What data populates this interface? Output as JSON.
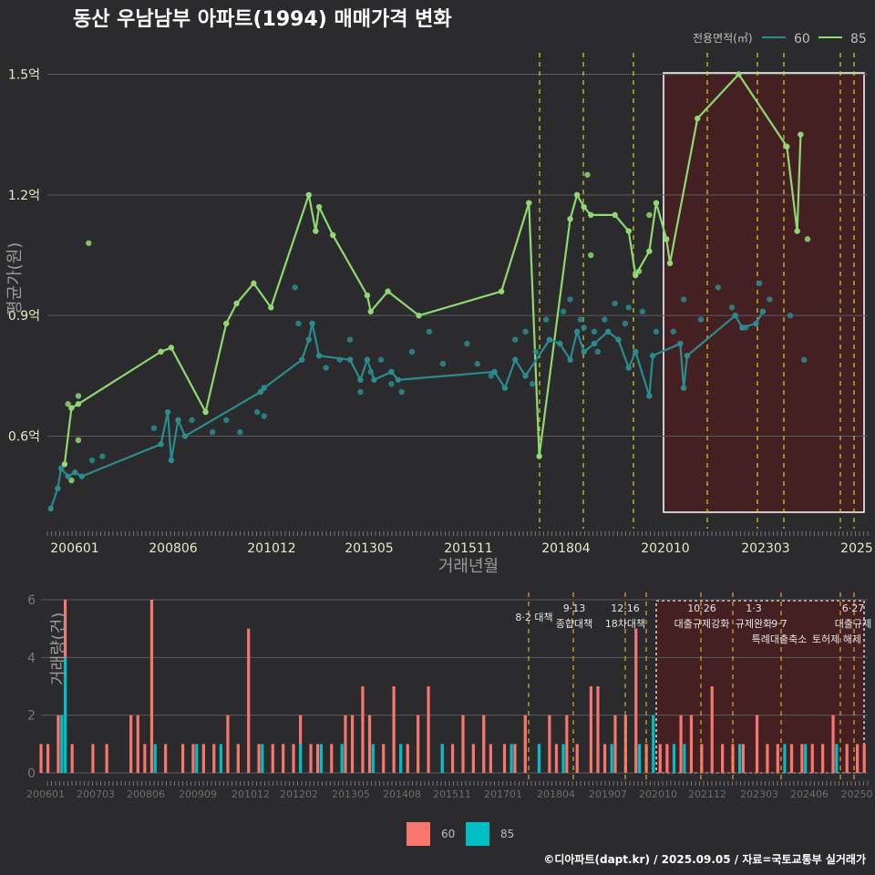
{
  "chart_data": [
    {
      "type": "line",
      "title": "동산 우남남부 아파트(1994) 매매가격 변화",
      "xlabel": "거래년월",
      "ylabel": "평균가(원)",
      "ylim": [
        0.37,
        1.56
      ],
      "yticks": [
        {
          "v": 0.6,
          "label": "0.6억"
        },
        {
          "v": 0.9,
          "label": "0.9억"
        },
        {
          "v": 1.2,
          "label": "1.2억"
        },
        {
          "v": 1.5,
          "label": "1.5억"
        }
      ],
      "xticks": [
        "200601",
        "200806",
        "201012",
        "201305",
        "201511",
        "201804",
        "202010",
        "202303",
        "2025"
      ],
      "legend": {
        "title": "전용면적(㎡)",
        "position": "top-right",
        "entries": [
          {
            "name": "60",
            "color": "#2a8c8f"
          },
          {
            "name": "85",
            "color": "#8fd873"
          }
        ]
      },
      "highlight_range": [
        "202011",
        "202509"
      ],
      "series": [
        {
          "name": "85",
          "color": "#8fd873",
          "line": [
            [
              2006.5,
              0.53
            ],
            [
              2006.7,
              0.67
            ],
            [
              2006.9,
              0.68
            ],
            [
              2009.3,
              0.81
            ],
            [
              2009.6,
              0.82
            ],
            [
              2010.6,
              0.66
            ],
            [
              2011.2,
              0.88
            ],
            [
              2011.5,
              0.93
            ],
            [
              2012.0,
              0.98
            ],
            [
              2012.5,
              0.92
            ],
            [
              2013.6,
              1.2
            ],
            [
              2013.8,
              1.11
            ],
            [
              2013.9,
              1.17
            ],
            [
              2014.3,
              1.1
            ],
            [
              2015.3,
              0.95
            ],
            [
              2015.4,
              0.91
            ],
            [
              2015.9,
              0.96
            ],
            [
              2016.8,
              0.9
            ],
            [
              2019.2,
              0.96
            ],
            [
              2020.0,
              1.18
            ],
            [
              2020.3,
              0.55
            ],
            [
              2021.2,
              1.14
            ],
            [
              2021.4,
              1.2
            ],
            [
              2021.6,
              1.17
            ],
            [
              2021.8,
              1.15
            ],
            [
              2022.5,
              1.15
            ],
            [
              2022.9,
              1.11
            ],
            [
              2023.1,
              1.0
            ],
            [
              2023.5,
              1.06
            ],
            [
              2023.7,
              1.18
            ],
            [
              2024.0,
              1.09
            ],
            [
              2024.1,
              1.03
            ],
            [
              2024.9,
              1.39
            ],
            [
              2026.1,
              1.5
            ],
            [
              2027.5,
              1.32
            ],
            [
              2027.8,
              1.11
            ],
            [
              2027.9,
              1.35
            ]
          ],
          "points": [
            [
              2006.6,
              0.68
            ],
            [
              2006.7,
              0.49
            ],
            [
              2006.9,
              0.59
            ],
            [
              2006.9,
              0.7
            ],
            [
              2007.2,
              1.08
            ],
            [
              2023.2,
              1.01
            ],
            [
              2023.5,
              1.15
            ],
            [
              2021.7,
              1.25
            ],
            [
              2021.8,
              1.05
            ],
            [
              2028.1,
              1.09
            ]
          ]
        },
        {
          "name": "60",
          "color": "#2a8c8f",
          "line": [
            [
              2006.1,
              0.42
            ],
            [
              2006.3,
              0.47
            ],
            [
              2006.4,
              0.52
            ],
            [
              2006.6,
              0.5
            ],
            [
              2006.8,
              0.51
            ],
            [
              2007.0,
              0.5
            ],
            [
              2009.3,
              0.58
            ],
            [
              2009.5,
              0.66
            ],
            [
              2009.6,
              0.54
            ],
            [
              2009.8,
              0.64
            ],
            [
              2010.0,
              0.6
            ],
            [
              2012.2,
              0.71
            ],
            [
              2012.3,
              0.72
            ],
            [
              2013.4,
              0.79
            ],
            [
              2013.6,
              0.84
            ],
            [
              2013.7,
              0.88
            ],
            [
              2013.9,
              0.8
            ],
            [
              2014.8,
              0.79
            ],
            [
              2015.1,
              0.74
            ],
            [
              2015.3,
              0.79
            ],
            [
              2015.5,
              0.74
            ],
            [
              2016.0,
              0.76
            ],
            [
              2016.2,
              0.74
            ],
            [
              2019.0,
              0.76
            ],
            [
              2019.3,
              0.72
            ],
            [
              2019.6,
              0.79
            ],
            [
              2019.9,
              0.75
            ],
            [
              2020.6,
              0.84
            ],
            [
              2020.9,
              0.83
            ],
            [
              2021.2,
              0.79
            ],
            [
              2021.4,
              0.86
            ],
            [
              2021.6,
              0.81
            ],
            [
              2021.9,
              0.83
            ],
            [
              2022.3,
              0.86
            ],
            [
              2022.6,
              0.84
            ],
            [
              2022.9,
              0.77
            ],
            [
              2023.1,
              0.81
            ],
            [
              2023.5,
              0.7
            ],
            [
              2023.6,
              0.8
            ],
            [
              2024.4,
              0.83
            ],
            [
              2024.5,
              0.72
            ],
            [
              2024.6,
              0.8
            ],
            [
              2026.0,
              0.9
            ],
            [
              2026.2,
              0.87
            ],
            [
              2026.6,
              0.88
            ],
            [
              2026.8,
              0.91
            ]
          ],
          "points": [
            [
              2007.3,
              0.54
            ],
            [
              2007.6,
              0.55
            ],
            [
              2009.1,
              0.62
            ],
            [
              2010.2,
              0.64
            ],
            [
              2010.8,
              0.61
            ],
            [
              2011.2,
              0.64
            ],
            [
              2011.6,
              0.61
            ],
            [
              2012.1,
              0.66
            ],
            [
              2012.3,
              0.65
            ],
            [
              2013.2,
              0.97
            ],
            [
              2013.3,
              0.88
            ],
            [
              2014.1,
              0.77
            ],
            [
              2014.5,
              0.79
            ],
            [
              2014.8,
              0.84
            ],
            [
              2015.1,
              0.71
            ],
            [
              2015.4,
              0.76
            ],
            [
              2015.7,
              0.79
            ],
            [
              2016.0,
              0.73
            ],
            [
              2016.3,
              0.71
            ],
            [
              2016.6,
              0.81
            ],
            [
              2017.1,
              0.86
            ],
            [
              2017.5,
              0.78
            ],
            [
              2018.2,
              0.83
            ],
            [
              2018.5,
              0.78
            ],
            [
              2018.9,
              0.75
            ],
            [
              2019.6,
              0.84
            ],
            [
              2019.9,
              0.86
            ],
            [
              2020.1,
              0.73
            ],
            [
              2020.2,
              0.81
            ],
            [
              2020.5,
              0.89
            ],
            [
              2021.0,
              0.91
            ],
            [
              2021.2,
              0.94
            ],
            [
              2021.5,
              0.89
            ],
            [
              2021.6,
              0.87
            ],
            [
              2021.9,
              0.86
            ],
            [
              2022.0,
              0.81
            ],
            [
              2022.2,
              0.89
            ],
            [
              2022.5,
              0.93
            ],
            [
              2022.8,
              0.88
            ],
            [
              2022.9,
              0.92
            ],
            [
              2023.3,
              0.91
            ],
            [
              2023.7,
              0.86
            ],
            [
              2024.2,
              0.86
            ],
            [
              2024.5,
              0.94
            ],
            [
              2025.0,
              0.89
            ],
            [
              2025.5,
              0.97
            ],
            [
              2025.9,
              0.92
            ],
            [
              2026.3,
              0.87
            ],
            [
              2026.7,
              0.98
            ],
            [
              2027.0,
              0.94
            ],
            [
              2027.6,
              0.9
            ],
            [
              2028.0,
              0.79
            ]
          ]
        }
      ]
    },
    {
      "type": "bar",
      "ylabel": "거래량(건)",
      "ylim": [
        0,
        6
      ],
      "yticks": [
        "0",
        "2",
        "4",
        "6"
      ],
      "xticks": [
        "200601",
        "200703",
        "200806",
        "200909",
        "201012",
        "201202",
        "201305",
        "201408",
        "201511",
        "201701",
        "201804",
        "201907",
        "202010",
        "202112",
        "202303",
        "202406",
        "20250"
      ],
      "legend": {
        "position": "bottom",
        "entries": [
          {
            "name": "60",
            "color": "#f8766d"
          },
          {
            "name": "85",
            "color": "#00bfc4"
          }
        ]
      },
      "events": [
        {
          "date": "2017.08",
          "lines": [
            "8·2 대책"
          ]
        },
        {
          "date": "2018.09",
          "lines": [
            "9·13",
            "종합대책"
          ]
        },
        {
          "date": "2019.12",
          "lines": [
            "12·16",
            "18차대책"
          ]
        },
        {
          "date": "2021.10",
          "lines": [
            "10·26",
            "대출규제강화"
          ]
        },
        {
          "date": "2023.01",
          "lines": [
            "1·3",
            "규제완화"
          ]
        },
        {
          "date": "2023.09",
          "lines": [
            "9·7",
            "특례대출축소"
          ]
        },
        {
          "date": "2025.06",
          "lines": [
            "6·27",
            "대출규제"
          ]
        },
        {
          "date": "2025.03",
          "lines": [
            "토허제 해제"
          ]
        }
      ],
      "bars_60": [
        [
          2006.0,
          1
        ],
        [
          2006.2,
          1
        ],
        [
          2006.5,
          2
        ],
        [
          2006.7,
          6
        ],
        [
          2006.9,
          1
        ],
        [
          2007.5,
          1
        ],
        [
          2007.9,
          1
        ],
        [
          2008.6,
          2
        ],
        [
          2008.8,
          2
        ],
        [
          2009.0,
          1
        ],
        [
          2009.2,
          6
        ],
        [
          2009.6,
          1
        ],
        [
          2010.1,
          1
        ],
        [
          2010.4,
          1
        ],
        [
          2010.7,
          1
        ],
        [
          2011.0,
          1
        ],
        [
          2011.4,
          2
        ],
        [
          2011.7,
          1
        ],
        [
          2012.0,
          5
        ],
        [
          2012.3,
          1
        ],
        [
          2012.7,
          1
        ],
        [
          2013.0,
          1
        ],
        [
          2013.3,
          1
        ],
        [
          2013.5,
          2
        ],
        [
          2013.8,
          1
        ],
        [
          2014.0,
          1
        ],
        [
          2014.4,
          1
        ],
        [
          2014.8,
          2
        ],
        [
          2015.0,
          2
        ],
        [
          2015.3,
          3
        ],
        [
          2015.5,
          2
        ],
        [
          2015.9,
          1
        ],
        [
          2016.2,
          3
        ],
        [
          2016.6,
          1
        ],
        [
          2016.9,
          2
        ],
        [
          2017.2,
          3
        ],
        [
          2017.6,
          1
        ],
        [
          2017.9,
          1
        ],
        [
          2018.2,
          2
        ],
        [
          2018.5,
          1
        ],
        [
          2018.8,
          2
        ],
        [
          2019.0,
          1
        ],
        [
          2019.4,
          1
        ],
        [
          2019.7,
          1
        ],
        [
          2020.0,
          2
        ],
        [
          2020.4,
          1
        ],
        [
          2020.7,
          2
        ],
        [
          2020.9,
          1
        ],
        [
          2021.2,
          2
        ],
        [
          2021.5,
          1
        ],
        [
          2021.9,
          3
        ],
        [
          2022.1,
          3
        ],
        [
          2022.3,
          1
        ],
        [
          2022.6,
          2
        ],
        [
          2022.9,
          2
        ],
        [
          2023.2,
          5
        ],
        [
          2023.5,
          1
        ],
        [
          2023.9,
          1
        ],
        [
          2024.1,
          1
        ],
        [
          2024.5,
          2
        ],
        [
          2024.8,
          2
        ],
        [
          2025.1,
          1
        ],
        [
          2025.4,
          3
        ],
        [
          2025.7,
          1
        ],
        [
          2026.0,
          1
        ],
        [
          2026.3,
          1
        ],
        [
          2026.7,
          2
        ],
        [
          2027.0,
          1
        ],
        [
          2027.3,
          1
        ],
        [
          2027.7,
          1
        ],
        [
          2028.0,
          1
        ],
        [
          2028.3,
          1
        ],
        [
          2028.6,
          1
        ],
        [
          2028.9,
          2
        ],
        [
          2029.3,
          1
        ],
        [
          2029.6,
          1
        ],
        [
          2029.8,
          1
        ]
      ],
      "bars_85": [
        [
          2006.6,
          2
        ],
        [
          2006.7,
          4
        ],
        [
          2009.3,
          1
        ],
        [
          2010.5,
          1
        ],
        [
          2011.2,
          1
        ],
        [
          2012.4,
          1
        ],
        [
          2013.5,
          1
        ],
        [
          2014.1,
          1
        ],
        [
          2014.7,
          1
        ],
        [
          2015.6,
          1
        ],
        [
          2016.4,
          1
        ],
        [
          2017.6,
          1
        ],
        [
          2019.6,
          1
        ],
        [
          2020.4,
          1
        ],
        [
          2021.1,
          1
        ],
        [
          2022.5,
          1
        ],
        [
          2023.3,
          1
        ],
        [
          2023.7,
          2
        ],
        [
          2024.3,
          1
        ],
        [
          2024.6,
          1
        ],
        [
          2026.2,
          1
        ],
        [
          2027.5,
          1
        ],
        [
          2028.1,
          1
        ],
        [
          2029.0,
          1
        ]
      ]
    }
  ],
  "footer": "©디아파트(dapt.kr) / 2025.09.05 / 자료=국토교통부 실거래가"
}
